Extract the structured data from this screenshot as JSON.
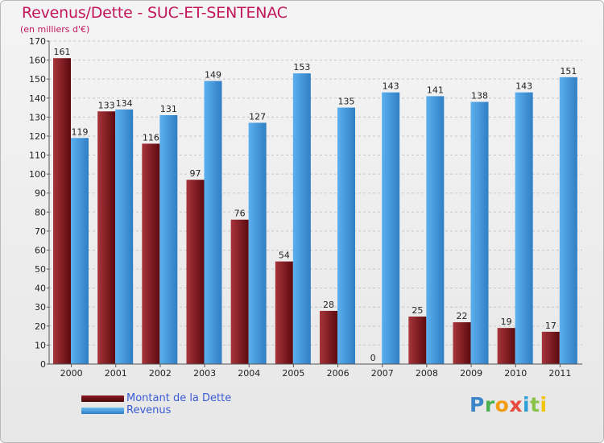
{
  "header": {
    "title": "Revenus/Dette - SUC-ET-SENTENAC",
    "subtitle": "(en milliers d'€)"
  },
  "legend": {
    "items": [
      {
        "label": "Montant de la Dette",
        "color": "#7a1c22"
      },
      {
        "label": "Revenus",
        "color": "#4a9fe0"
      }
    ]
  },
  "logo": {
    "text": "Proxiti"
  },
  "colors": {
    "dette_dark": "#5c0a0f",
    "dette_light": "#a8343b",
    "revenus_dark": "#2f7fc4",
    "revenus_light": "#5cb0ee",
    "grid": "#c8c8c8",
    "axis": "#555555"
  },
  "chart_data": {
    "type": "bar",
    "title": "Revenus/Dette - SUC-ET-SENTENAC",
    "ylabel": "(en milliers d'€)",
    "categories": [
      "2000",
      "2001",
      "2002",
      "2003",
      "2004",
      "2005",
      "2006",
      "2007",
      "2008",
      "2009",
      "2010",
      "2011"
    ],
    "series": [
      {
        "name": "Montant de la Dette",
        "values": [
          161,
          133,
          116,
          97,
          76,
          54,
          28,
          0,
          25,
          22,
          19,
          17
        ]
      },
      {
        "name": "Revenus",
        "values": [
          119,
          134,
          131,
          149,
          127,
          153,
          135,
          143,
          141,
          138,
          143,
          151
        ]
      }
    ],
    "ylim": [
      0,
      170
    ],
    "yticks": [
      0,
      10,
      20,
      30,
      40,
      50,
      60,
      70,
      80,
      90,
      100,
      110,
      120,
      130,
      140,
      150,
      160,
      170
    ],
    "grid": true,
    "legend_position": "bottom-left"
  }
}
